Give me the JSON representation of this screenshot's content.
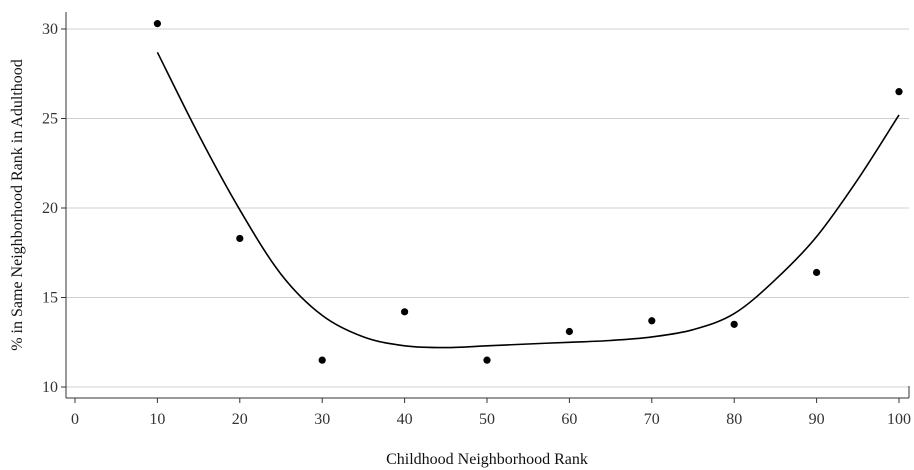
{
  "chart_data": {
    "type": "scatter",
    "title": "",
    "xlabel": "Childhood Neighborhood Rank",
    "ylabel": "% in Same Neighborhood Rank in Adulthood",
    "xlim": [
      0,
      100
    ],
    "ylim": [
      10,
      30
    ],
    "x_ticks": [
      "0",
      "10",
      "20",
      "30",
      "40",
      "50",
      "60",
      "70",
      "80",
      "90",
      "100"
    ],
    "y_ticks": [
      "10",
      "15",
      "20",
      "25",
      "30"
    ],
    "grid": "horizontal",
    "legend": "none",
    "colors": {
      "points": "#000000",
      "line": "#000000",
      "grid": "#d0d0d0"
    },
    "series": [
      {
        "type": "scatter",
        "x": [
          10,
          20,
          30,
          40,
          50,
          60,
          70,
          80,
          90,
          100
        ],
        "y": [
          30.3,
          18.3,
          11.5,
          14.2,
          11.5,
          13.1,
          13.7,
          13.5,
          16.4,
          26.5
        ]
      },
      {
        "type": "line",
        "x": [
          10,
          15,
          20,
          25,
          30,
          35,
          40,
          45,
          50,
          55,
          60,
          65,
          70,
          75,
          80,
          85,
          90,
          95,
          100
        ],
        "y": [
          28.7,
          24.1,
          19.9,
          16.3,
          14.0,
          12.8,
          12.3,
          12.2,
          12.3,
          12.4,
          12.5,
          12.6,
          12.8,
          13.2,
          14.1,
          16.0,
          18.4,
          21.6,
          25.2
        ]
      }
    ]
  }
}
